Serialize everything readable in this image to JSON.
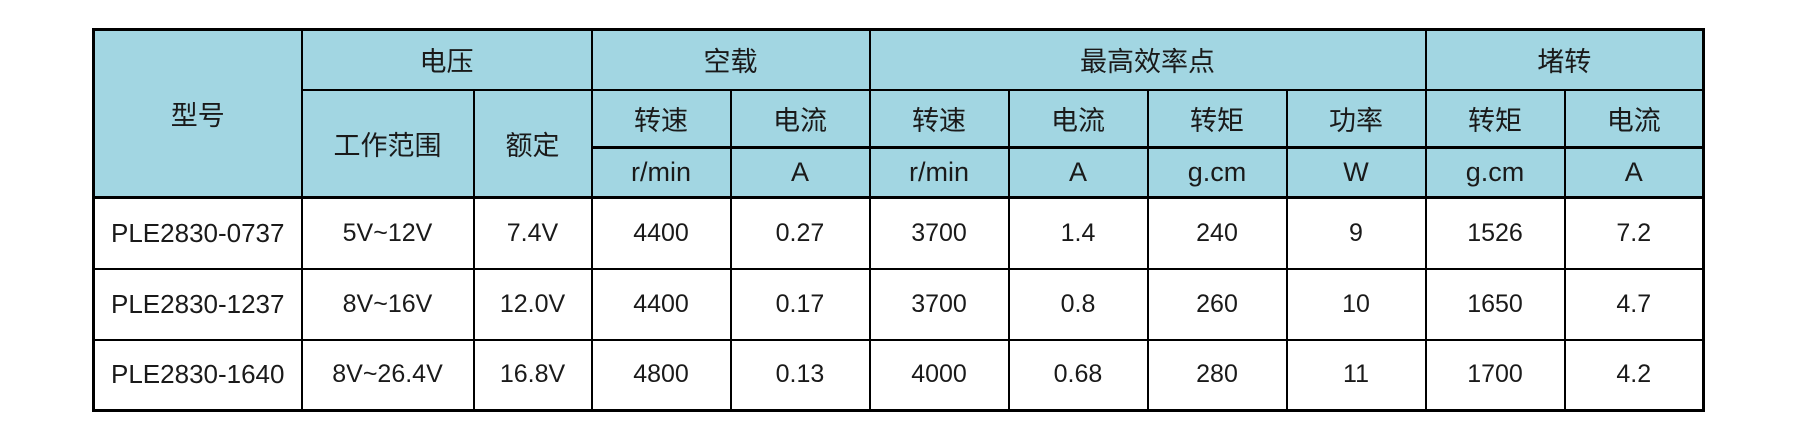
{
  "colors": {
    "header_bg": "#a2d6e2",
    "border": "#000000",
    "text": "#1a1a1a",
    "row_bg": "#ffffff",
    "page_bg": "#ffffff"
  },
  "table": {
    "model_header": "型号",
    "groups": [
      "电压",
      "空载",
      "最高效率点",
      "堵转"
    ],
    "subs": [
      "工作范围",
      "额定",
      "转速",
      "电流",
      "转速",
      "电流",
      "转矩",
      "功率",
      "转矩",
      "电流"
    ],
    "units": [
      "r/min",
      "A",
      "r/min",
      "A",
      "g.cm",
      "W",
      "g.cm",
      "A"
    ],
    "rows": [
      [
        "PLE2830-0737",
        "5V~12V",
        "7.4V",
        "4400",
        "0.27",
        "3700",
        "1.4",
        "240",
        "9",
        "1526",
        "7.2"
      ],
      [
        "PLE2830-1237",
        "8V~16V",
        "12.0V",
        "4400",
        "0.17",
        "3700",
        "0.8",
        "260",
        "10",
        "1650",
        "4.7"
      ],
      [
        "PLE2830-1640",
        "8V~26.4V",
        "16.8V",
        "4800",
        "0.13",
        "4000",
        "0.68",
        "280",
        "11",
        "1700",
        "4.2"
      ]
    ]
  },
  "chart_data": {
    "type": "table",
    "title": "",
    "column_groups": [
      {
        "label": "电压",
        "span": 2
      },
      {
        "label": "空载",
        "span": 2
      },
      {
        "label": "最高效率点",
        "span": 4
      },
      {
        "label": "堵转",
        "span": 2
      }
    ],
    "columns": [
      "型号",
      "电压 工作范围",
      "电压 额定",
      "空载 转速 (r/min)",
      "空载 电流 (A)",
      "最高效率点 转速 (r/min)",
      "最高效率点 电流 (A)",
      "最高效率点 转矩 (g.cm)",
      "最高效率点 功率 (W)",
      "堵转 转矩 (g.cm)",
      "堵转 电流 (A)"
    ],
    "rows": [
      [
        "PLE2830-0737",
        "5V~12V",
        "7.4V",
        4400,
        0.27,
        3700,
        1.4,
        240,
        9,
        1526,
        7.2
      ],
      [
        "PLE2830-1237",
        "8V~16V",
        "12.0V",
        4400,
        0.17,
        3700,
        0.8,
        260,
        10,
        1650,
        4.7
      ],
      [
        "PLE2830-1640",
        "8V~26.4V",
        "16.8V",
        4800,
        0.13,
        4000,
        0.68,
        280,
        11,
        1700,
        4.2
      ]
    ]
  }
}
